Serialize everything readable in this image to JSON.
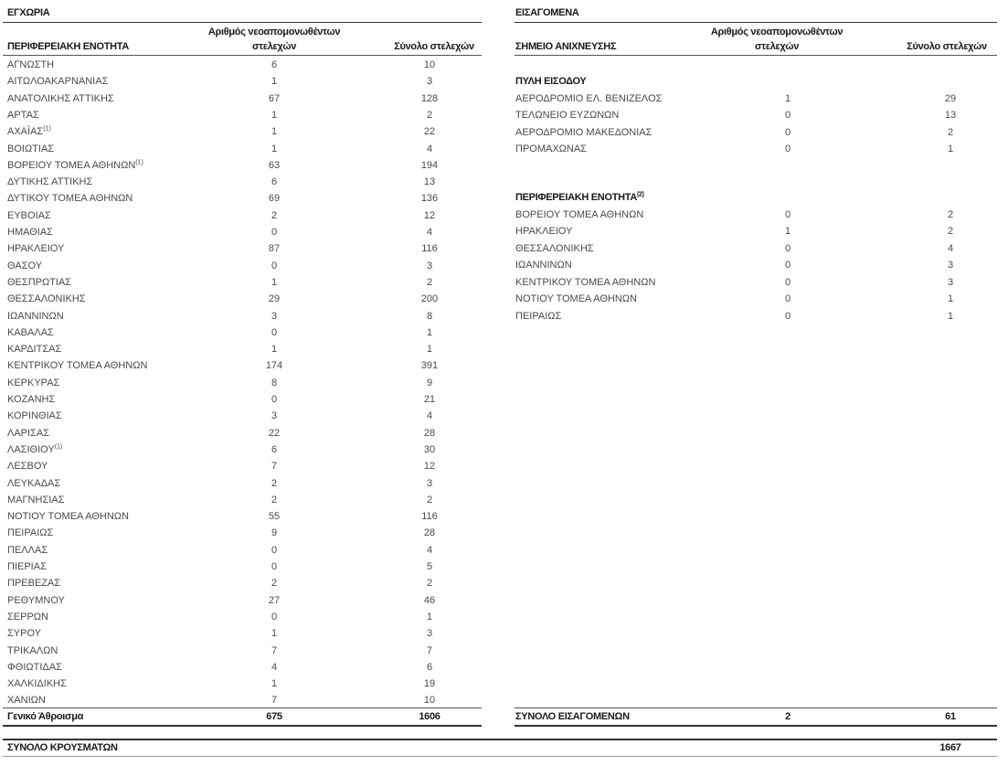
{
  "local": {
    "title": "ΕΓΧΩΡΙΑ",
    "headers": {
      "region": "ΠΕΡΙΦΕΡΕΙΑΚΗ ΕΝΟΤΗΤΑ",
      "isolated_line1": "Αριθμός νεοαπομονωθέντων",
      "isolated_line2": "στελεχών",
      "total": "Σύνολο στελεχών"
    },
    "rows": [
      {
        "name": "ΑΓΝΩΣΤΗ",
        "isolated": "6",
        "total": "10"
      },
      {
        "name": "ΑΙΤΩΛΟΑΚΑΡΝΑΝΙΑΣ",
        "isolated": "1",
        "total": "3"
      },
      {
        "name": "ΑΝΑΤΟΛΙΚΗΣ ΑΤΤΙΚΗΣ",
        "isolated": "67",
        "total": "128"
      },
      {
        "name": "ΑΡΤΑΣ",
        "isolated": "1",
        "total": "2"
      },
      {
        "name": "ΑΧΑΪΑΣ",
        "note": "(1)",
        "isolated": "1",
        "total": "22"
      },
      {
        "name": "ΒΟΙΩΤΙΑΣ",
        "isolated": "1",
        "total": "4"
      },
      {
        "name": "ΒΟΡΕΙΟΥ ΤΟΜΕΑ ΑΘΗΝΩΝ",
        "note": "(1)",
        "isolated": "63",
        "total": "194"
      },
      {
        "name": "ΔΥΤΙΚΗΣ ΑΤΤΙΚΗΣ",
        "isolated": "6",
        "total": "13"
      },
      {
        "name": "ΔΥΤΙΚΟΥ ΤΟΜΕΑ ΑΘΗΝΩΝ",
        "isolated": "69",
        "total": "136"
      },
      {
        "name": "ΕΥΒΟΙΑΣ",
        "isolated": "2",
        "total": "12"
      },
      {
        "name": "ΗΜΑΘΙΑΣ",
        "isolated": "0",
        "total": "4"
      },
      {
        "name": "ΗΡΑΚΛΕΙΟΥ",
        "isolated": "87",
        "total": "116"
      },
      {
        "name": "ΘΑΣΟΥ",
        "isolated": "0",
        "total": "3"
      },
      {
        "name": "ΘΕΣΠΡΩΤΙΑΣ",
        "isolated": "1",
        "total": "2"
      },
      {
        "name": "ΘΕΣΣΑΛΟΝΙΚΗΣ",
        "isolated": "29",
        "total": "200"
      },
      {
        "name": "ΙΩΑΝΝΙΝΩΝ",
        "isolated": "3",
        "total": "8"
      },
      {
        "name": "ΚΑΒΑΛΑΣ",
        "isolated": "0",
        "total": "1"
      },
      {
        "name": "ΚΑΡΔΙΤΣΑΣ",
        "isolated": "1",
        "total": "1"
      },
      {
        "name": "ΚΕΝΤΡΙΚΟΥ ΤΟΜΕΑ ΑΘΗΝΩΝ",
        "isolated": "174",
        "total": "391"
      },
      {
        "name": "ΚΕΡΚΥΡΑΣ",
        "isolated": "8",
        "total": "9"
      },
      {
        "name": "ΚΟΖΑΝΗΣ",
        "isolated": "0",
        "total": "21"
      },
      {
        "name": "ΚΟΡΙΝΘΙΑΣ",
        "isolated": "3",
        "total": "4"
      },
      {
        "name": "ΛΑΡΙΣΑΣ",
        "isolated": "22",
        "total": "28"
      },
      {
        "name": "ΛΑΣΙΘΙΟΥ",
        "note": "(1)",
        "isolated": "6",
        "total": "30"
      },
      {
        "name": "ΛΕΣΒΟΥ",
        "isolated": "7",
        "total": "12"
      },
      {
        "name": "ΛΕΥΚΑΔΑΣ",
        "isolated": "2",
        "total": "3"
      },
      {
        "name": "ΜΑΓΝΗΣΙΑΣ",
        "isolated": "2",
        "total": "2"
      },
      {
        "name": "ΝΟΤΙΟΥ ΤΟΜΕΑ ΑΘΗΝΩΝ",
        "isolated": "55",
        "total": "116"
      },
      {
        "name": "ΠΕΙΡΑΙΩΣ",
        "isolated": "9",
        "total": "28"
      },
      {
        "name": "ΠΕΛΛΑΣ",
        "isolated": "0",
        "total": "4"
      },
      {
        "name": "ΠΙΕΡΙΑΣ",
        "isolated": "0",
        "total": "5"
      },
      {
        "name": "ΠΡΕΒΕΖΑΣ",
        "isolated": "2",
        "total": "2"
      },
      {
        "name": "ΡΕΘΥΜΝΟΥ",
        "isolated": "27",
        "total": "46"
      },
      {
        "name": "ΣΕΡΡΩΝ",
        "isolated": "0",
        "total": "1"
      },
      {
        "name": "ΣΥΡΟΥ",
        "isolated": "1",
        "total": "3"
      },
      {
        "name": "ΤΡΙΚΑΛΩΝ",
        "isolated": "7",
        "total": "7"
      },
      {
        "name": "ΦΘΙΩΤΙΔΑΣ",
        "isolated": "4",
        "total": "6"
      },
      {
        "name": "ΧΑΛΚΙΔΙΚΗΣ",
        "isolated": "1",
        "total": "19"
      },
      {
        "name": "ΧΑΝΙΩΝ",
        "isolated": "7",
        "total": "10"
      }
    ],
    "sum": {
      "label": "Γενικό Άθροισμα",
      "isolated": "675",
      "total": "1606"
    }
  },
  "imported": {
    "title": "ΕΙΣΑΓΟΜΕΝΑ",
    "headers": {
      "point": "ΣΗΜΕΙΟ ΑΝΙΧΝΕΥΣΗΣ",
      "isolated_line1": "Αριθμός νεοαπομονωθέντων",
      "isolated_line2": "στελεχών",
      "total": "Σύνολο στελεχών"
    },
    "groups": [
      {
        "label": "ΠΥΛΗ ΕΙΣΟΔΟΥ",
        "rows": [
          {
            "name": "ΑΕΡΟΔΡΟΜΙΟ ΕΛ. ΒΕΝΙΖΕΛΟΣ",
            "isolated": "1",
            "total": "29"
          },
          {
            "name": "ΤΕΛΩΝΕΙΟ ΕΥΖΩΝΩΝ",
            "isolated": "0",
            "total": "13"
          },
          {
            "name": "ΑΕΡΟΔΡΟΜΙΟ ΜΑΚΕΔΟΝΙΑΣ",
            "isolated": "0",
            "total": "2"
          },
          {
            "name": "ΠΡΟΜΑΧΩΝΑΣ",
            "isolated": "0",
            "total": "1"
          }
        ]
      },
      {
        "label": "ΠΕΡΙΦΕΡΕΙΑΚΗ ΕΝΟΤΗΤΑ",
        "note": "(2)",
        "rows": [
          {
            "name": "ΒΟΡΕΙΟΥ ΤΟΜΕΑ ΑΘΗΝΩΝ",
            "isolated": "0",
            "total": "2"
          },
          {
            "name": "ΗΡΑΚΛΕΙΟΥ",
            "isolated": "1",
            "total": "2"
          },
          {
            "name": "ΘΕΣΣΑΛΟΝΙΚΗΣ",
            "isolated": "0",
            "total": "4"
          },
          {
            "name": "ΙΩΑΝΝΙΝΩΝ",
            "isolated": "0",
            "total": "3"
          },
          {
            "name": "ΚΕΝΤΡΙΚΟΥ ΤΟΜΕΑ ΑΘΗΝΩΝ",
            "isolated": "0",
            "total": "3"
          },
          {
            "name": "ΝΟΤΙΟΥ ΤΟΜΕΑ ΑΘΗΝΩΝ",
            "isolated": "0",
            "total": "1"
          },
          {
            "name": "ΠΕΙΡΑΙΩΣ",
            "isolated": "0",
            "total": "1"
          }
        ]
      }
    ],
    "sum": {
      "label": "ΣΥΝΟΛΟ ΕΙΣΑΓΟΜΕΝΩΝ",
      "isolated": "2",
      "total": "61"
    }
  },
  "grand_total": {
    "label": "ΣΥΝΟΛΟ ΚΡΟΥΣΜΑΤΩΝ",
    "value": "1667"
  }
}
